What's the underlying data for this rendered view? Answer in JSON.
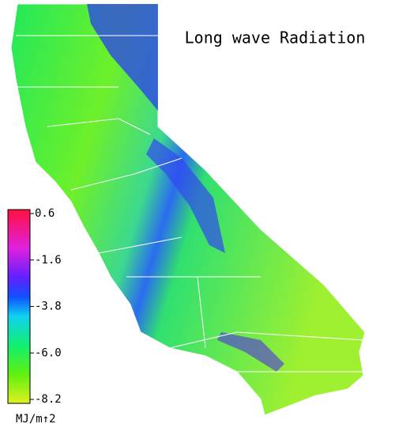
{
  "title": "Long wave Radiation",
  "colorbar": {
    "lim": [
      -8.2,
      0.6
    ],
    "ticks": [
      0.6,
      -1.6,
      -3.8,
      {
        "value": -6,
        "label": "-6.0"
      },
      -8.2
    ],
    "unit": "MJ/m↑2"
  }
}
